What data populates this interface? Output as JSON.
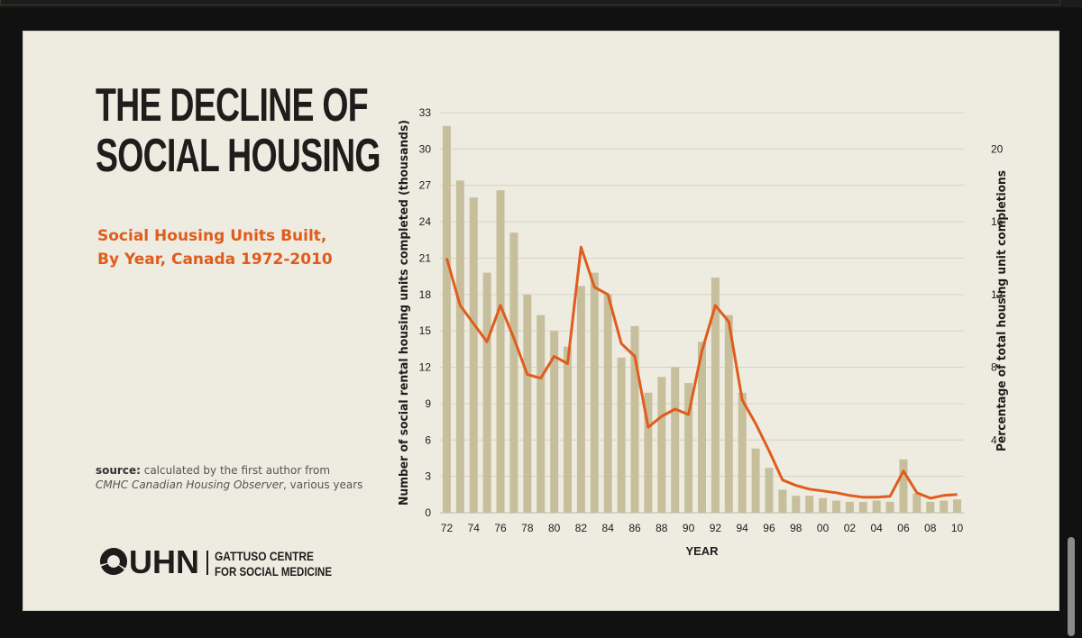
{
  "page": {
    "title_line1": "THE DECLINE OF",
    "title_line2": "SOCIAL HOUSING",
    "subtitle_line1": "Social Housing Units Built,",
    "subtitle_line2": "By Year, Canada 1972-2010",
    "source_label": "source:",
    "source_text": "calculated by the first author from",
    "source_italic": "CMHC Canadian Housing Observer",
    "source_tail": ", various years",
    "logo_main": "UHN",
    "logo_line1": "GATTUSO CENTRE",
    "logo_line2": "FOR SOCIAL MEDICINE"
  },
  "colors": {
    "bar": "#c7bf9c",
    "line": "#e05c1c",
    "accent": "#e05c1c",
    "text": "#1d1d1b",
    "background": "#eeebe1"
  },
  "chart_data": {
    "type": "bar",
    "title": "Social Housing Units Built, By Year, Canada 1972-2010",
    "xlabel": "YEAR",
    "ylabel": "Number of social rental housing units completed (thousands)",
    "y2label": "Percentage of total housing unit completions",
    "ylim": [
      0,
      33
    ],
    "y2lim": [
      0,
      22
    ],
    "yticks": [
      0,
      3,
      6,
      9,
      12,
      15,
      18,
      21,
      24,
      27,
      30,
      33
    ],
    "y2ticks": [
      4,
      8,
      12,
      16,
      20
    ],
    "grid": true,
    "categories": [
      "72",
      "73",
      "74",
      "75",
      "76",
      "77",
      "78",
      "79",
      "80",
      "81",
      "82",
      "83",
      "84",
      "85",
      "86",
      "87",
      "88",
      "89",
      "90",
      "91",
      "92",
      "93",
      "94",
      "95",
      "96",
      "97",
      "98",
      "99",
      "00",
      "01",
      "02",
      "03",
      "04",
      "05",
      "06",
      "07",
      "08",
      "09",
      "10"
    ],
    "xtick_labels": [
      "72",
      "74",
      "76",
      "78",
      "80",
      "82",
      "84",
      "86",
      "88",
      "90",
      "92",
      "94",
      "96",
      "98",
      "00",
      "02",
      "04",
      "06",
      "08",
      "10"
    ],
    "series": [
      {
        "name": "Social rental housing units completed (thousands)",
        "type": "bar",
        "axis": "left",
        "values": [
          31.9,
          27.4,
          26.0,
          19.8,
          26.6,
          23.1,
          18.0,
          16.3,
          15.0,
          13.7,
          18.7,
          19.8,
          18.0,
          12.8,
          15.4,
          9.9,
          11.2,
          12.0,
          10.7,
          14.1,
          19.4,
          16.3,
          9.9,
          5.3,
          3.7,
          1.9,
          1.4,
          1.4,
          1.2,
          1.0,
          0.9,
          0.9,
          1.0,
          0.9,
          4.4,
          1.6,
          0.9,
          1.0,
          1.1
        ]
      },
      {
        "name": "Percentage of total housing unit completions",
        "type": "line",
        "axis": "right",
        "values": [
          14.0,
          11.4,
          10.4,
          9.4,
          11.4,
          9.6,
          7.6,
          7.4,
          8.6,
          8.2,
          14.6,
          12.4,
          12.0,
          9.3,
          8.6,
          4.7,
          5.3,
          5.7,
          5.4,
          8.9,
          11.4,
          10.5,
          6.2,
          4.9,
          3.4,
          1.8,
          1.5,
          1.3,
          1.2,
          1.1,
          0.95,
          0.85,
          0.85,
          0.9,
          2.3,
          1.1,
          0.8,
          0.95,
          1.0
        ]
      }
    ]
  }
}
